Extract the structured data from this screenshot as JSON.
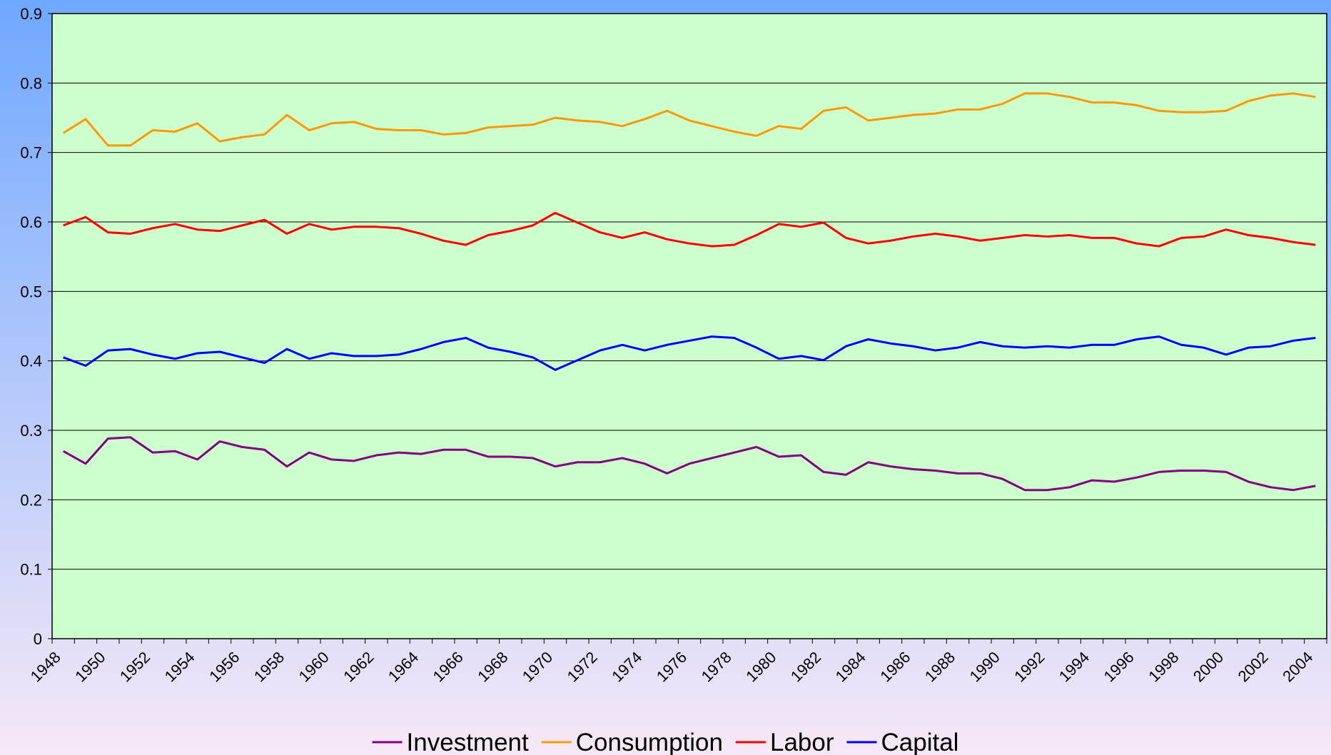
{
  "chart_data": {
    "type": "line",
    "categories": [
      "1948",
      null,
      "1950",
      null,
      "1952",
      null,
      "1954",
      null,
      "1956",
      null,
      "1958",
      null,
      "1960",
      null,
      "1962",
      null,
      "1964",
      null,
      "1966",
      null,
      "1968",
      null,
      "1970",
      null,
      "1972",
      null,
      "1974",
      null,
      "1976",
      null,
      "1978",
      null,
      "1980",
      null,
      "1982",
      null,
      "1984",
      null,
      "1986",
      null,
      "1988",
      null,
      "1990",
      null,
      "1992",
      null,
      "1994",
      null,
      "1996",
      null,
      "1998",
      null,
      "2000",
      null,
      "2002",
      null,
      "2004"
    ],
    "series": [
      {
        "name": "Investment",
        "color": "#800080",
        "values": [
          0.27,
          0.252,
          0.288,
          0.29,
          0.268,
          0.27,
          0.258,
          0.284,
          0.276,
          0.272,
          0.248,
          0.268,
          0.258,
          0.256,
          0.264,
          0.268,
          0.266,
          0.272,
          0.272,
          0.262,
          0.262,
          0.26,
          0.248,
          0.254,
          0.254,
          0.26,
          0.252,
          0.238,
          0.252,
          0.26,
          0.268,
          0.276,
          0.262,
          0.264,
          0.24,
          0.236,
          0.254,
          0.248,
          0.244,
          0.242,
          0.238,
          0.238,
          0.23,
          0.214,
          0.214,
          0.218,
          0.228,
          0.226,
          0.232,
          0.24,
          0.242,
          0.242,
          0.24,
          0.226,
          0.218,
          0.214,
          0.22
        ]
      },
      {
        "name": "Consumption",
        "color": "#ff9900",
        "values": [
          0.728,
          0.748,
          0.71,
          0.71,
          0.732,
          0.73,
          0.742,
          0.716,
          0.722,
          0.726,
          0.754,
          0.732,
          0.742,
          0.744,
          0.734,
          0.732,
          0.732,
          0.726,
          0.728,
          0.736,
          0.738,
          0.74,
          0.75,
          0.746,
          0.744,
          0.738,
          0.748,
          0.76,
          0.746,
          0.738,
          0.73,
          0.724,
          0.738,
          0.734,
          0.76,
          0.765,
          0.746,
          0.75,
          0.754,
          0.756,
          0.762,
          0.762,
          0.77,
          0.785,
          0.785,
          0.78,
          0.772,
          0.772,
          0.768,
          0.76,
          0.758,
          0.758,
          0.76,
          0.774,
          0.782,
          0.785,
          0.78
        ]
      },
      {
        "name": "Labor",
        "color": "#ff0000",
        "values": [
          0.595,
          0.607,
          0.585,
          0.583,
          0.591,
          0.597,
          0.589,
          0.587,
          0.595,
          0.603,
          0.583,
          0.597,
          0.589,
          0.593,
          0.593,
          0.591,
          0.583,
          0.573,
          0.567,
          0.581,
          0.587,
          0.595,
          0.613,
          0.599,
          0.585,
          0.577,
          0.585,
          0.575,
          0.569,
          0.565,
          0.567,
          0.581,
          0.597,
          0.593,
          0.599,
          0.577,
          0.569,
          0.573,
          0.579,
          0.583,
          0.579,
          0.573,
          0.577,
          0.581,
          0.579,
          0.581,
          0.577,
          0.577,
          0.569,
          0.565,
          0.577,
          0.579,
          0.589,
          0.581,
          0.577,
          0.571,
          0.567
        ]
      },
      {
        "name": "Capital",
        "color": "#0000ff",
        "values": [
          0.405,
          0.393,
          0.415,
          0.417,
          0.409,
          0.403,
          0.411,
          0.413,
          0.405,
          0.397,
          0.417,
          0.403,
          0.411,
          0.407,
          0.407,
          0.409,
          0.417,
          0.427,
          0.433,
          0.419,
          0.413,
          0.405,
          0.387,
          0.401,
          0.415,
          0.423,
          0.415,
          0.423,
          0.429,
          0.435,
          0.433,
          0.419,
          0.403,
          0.407,
          0.401,
          0.421,
          0.431,
          0.425,
          0.421,
          0.415,
          0.419,
          0.427,
          0.421,
          0.419,
          0.421,
          0.419,
          0.423,
          0.423,
          0.431,
          0.435,
          0.423,
          0.419,
          0.409,
          0.419,
          0.421,
          0.429,
          0.433
        ]
      }
    ],
    "ylim": [
      0,
      0.9
    ],
    "yticks": [
      0,
      0.1,
      0.2,
      0.3,
      0.4,
      0.5,
      0.6,
      0.7,
      0.8,
      0.9
    ],
    "grid": true,
    "plot_color": "#ccffcc",
    "legend": "bottom"
  }
}
